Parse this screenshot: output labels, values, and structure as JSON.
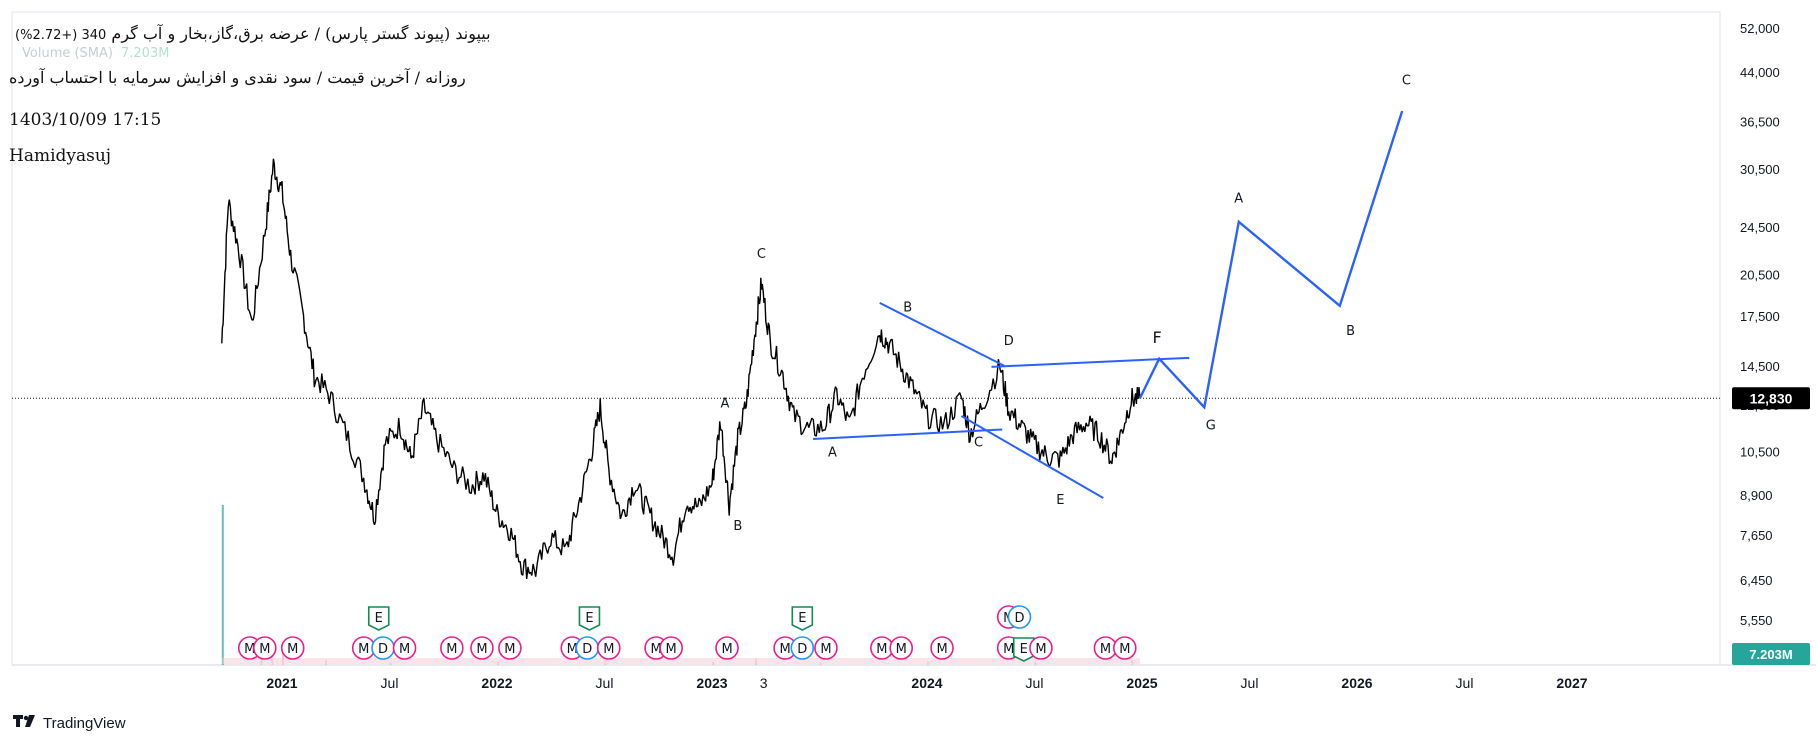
{
  "header": {
    "title_line": "بیپوند (پیوند گستر پارس) / عرضه برق،گاز،بخار و آب گرم",
    "change": "340 (+2.72%)",
    "volume_label": "Volume (SMA)",
    "volume_value": "7.203M",
    "subtitle": "روزانه / آخرین قیمت / سود نقدی و افزایش سرمایه با احتساب آورده",
    "datetime": "1403/10/09 17:15",
    "author": "Hamidyasuj"
  },
  "footer": {
    "brand": "TradingView"
  },
  "colors": {
    "candle": "#000000",
    "projection": "#2962ff",
    "price_tag_bg": "#000000",
    "volume_tag_bg": "#26a69a",
    "event_M": "#e91e8c",
    "event_E": "#138a55",
    "event_D": "#2196f3"
  },
  "chart_data": {
    "type": "line",
    "scale": "log",
    "x_axis_labels": [
      {
        "label": "2021",
        "t": 2021.0
      },
      {
        "label": "Jul",
        "t": 2021.5
      },
      {
        "label": "2022",
        "t": 2022.0
      },
      {
        "label": "Jul",
        "t": 2022.5
      },
      {
        "label": "2023",
        "t": 2023.0
      },
      {
        "label": "3",
        "t": 2023.24
      },
      {
        "label": "2024",
        "t": 2024.0
      },
      {
        "label": "Jul",
        "t": 2024.5
      },
      {
        "label": "2025",
        "t": 2025.0
      },
      {
        "label": "Jul",
        "t": 2025.5
      },
      {
        "label": "2026",
        "t": 2026.0
      },
      {
        "label": "Jul",
        "t": 2026.5
      },
      {
        "label": "2027",
        "t": 2027.0
      }
    ],
    "y_axis_labels": [
      52000,
      44000,
      36500,
      30500,
      24500,
      20500,
      17500,
      14500,
      12500,
      10500,
      8900,
      7650,
      6450,
      5550
    ],
    "y_axis_label_text": [
      "52,000",
      "44,000",
      "36,500",
      "30,500",
      "24,500",
      "20,500",
      "17,500",
      "14,500",
      "12,500",
      "10,500",
      "8,900",
      "7,650",
      "6,450",
      "5,550"
    ],
    "last_price": 12830,
    "last_price_label": "12,830",
    "volume_tag": "7.203M",
    "price_series_approx": [
      [
        2020.72,
        15800
      ],
      [
        2020.75,
        27000
      ],
      [
        2020.8,
        22500
      ],
      [
        2020.86,
        17000
      ],
      [
        2020.92,
        24000
      ],
      [
        2020.96,
        31000
      ],
      [
        2021.0,
        28000
      ],
      [
        2021.04,
        22000
      ],
      [
        2021.1,
        17500
      ],
      [
        2021.15,
        14000
      ],
      [
        2021.22,
        13000
      ],
      [
        2021.3,
        11200
      ],
      [
        2021.38,
        9500
      ],
      [
        2021.43,
        8200
      ],
      [
        2021.48,
        10800
      ],
      [
        2021.55,
        11600
      ],
      [
        2021.6,
        10200
      ],
      [
        2021.66,
        12400
      ],
      [
        2021.72,
        11000
      ],
      [
        2021.8,
        9800
      ],
      [
        2021.88,
        9200
      ],
      [
        2021.94,
        9600
      ],
      [
        2022.0,
        8300
      ],
      [
        2022.06,
        7800
      ],
      [
        2022.12,
        6800
      ],
      [
        2022.18,
        6700
      ],
      [
        2022.25,
        7600
      ],
      [
        2022.32,
        7200
      ],
      [
        2022.38,
        8600
      ],
      [
        2022.44,
        10500
      ],
      [
        2022.48,
        12400
      ],
      [
        2022.52,
        9800
      ],
      [
        2022.58,
        8200
      ],
      [
        2022.64,
        9300
      ],
      [
        2022.7,
        8400
      ],
      [
        2022.76,
        7700
      ],
      [
        2022.82,
        7100
      ],
      [
        2022.88,
        8700
      ],
      [
        2022.94,
        8500
      ],
      [
        2023.0,
        9300
      ],
      [
        2023.04,
        11800
      ],
      [
        2023.08,
        8600
      ],
      [
        2023.12,
        11000
      ],
      [
        2023.16,
        12600
      ],
      [
        2023.2,
        16500
      ],
      [
        2023.23,
        19800
      ],
      [
        2023.27,
        16000
      ],
      [
        2023.33,
        14000
      ],
      [
        2023.38,
        12000
      ],
      [
        2023.45,
        11400
      ],
      [
        2023.52,
        11500
      ],
      [
        2023.58,
        13000
      ],
      [
        2023.64,
        11600
      ],
      [
        2023.7,
        14000
      ],
      [
        2023.78,
        16500
      ],
      [
        2023.82,
        15800
      ],
      [
        2023.88,
        14500
      ],
      [
        2023.94,
        13200
      ],
      [
        2024.0,
        12000
      ],
      [
        2024.08,
        11600
      ],
      [
        2024.16,
        12900
      ],
      [
        2024.2,
        11200
      ],
      [
        2024.26,
        12600
      ],
      [
        2024.34,
        14500
      ],
      [
        2024.38,
        12300
      ],
      [
        2024.44,
        11500
      ],
      [
        2024.5,
        10800
      ],
      [
        2024.56,
        10300
      ],
      [
        2024.62,
        10200
      ],
      [
        2024.68,
        11200
      ],
      [
        2024.74,
        11700
      ],
      [
        2024.8,
        11200
      ],
      [
        2024.86,
        10200
      ],
      [
        2024.9,
        11200
      ],
      [
        2024.95,
        12800
      ],
      [
        2024.99,
        12830
      ]
    ],
    "projection_path": [
      {
        "label": "",
        "t": 2024.99,
        "v": 12830
      },
      {
        "label": "F",
        "t": 2025.08,
        "v": 14900
      },
      {
        "label": "G",
        "t": 2025.29,
        "v": 12400
      },
      {
        "label": "A",
        "t": 2025.45,
        "v": 25000
      },
      {
        "label": "B",
        "t": 2025.92,
        "v": 18200
      },
      {
        "label": "C",
        "t": 2026.21,
        "v": 38000
      }
    ],
    "trendlines": [
      {
        "from": {
          "t": 2023.78,
          "v": 18400
        },
        "to": {
          "t": 2024.36,
          "v": 14500
        }
      },
      {
        "from": {
          "t": 2024.16,
          "v": 12000
        },
        "to": {
          "t": 2024.82,
          "v": 8800
        }
      },
      {
        "from": {
          "t": 2023.47,
          "v": 11000
        },
        "to": {
          "t": 2024.35,
          "v": 11400
        }
      },
      {
        "from": {
          "t": 2024.3,
          "v": 14450
        },
        "to": {
          "t": 2025.22,
          "v": 14950
        }
      }
    ],
    "wave_labels": [
      {
        "text": "C",
        "t": 2023.23,
        "v": 21800,
        "pos": "above"
      },
      {
        "text": "A",
        "t": 2023.06,
        "v": 12400,
        "pos": "above"
      },
      {
        "text": "B",
        "t": 2023.12,
        "v": 7800,
        "pos": "below"
      },
      {
        "text": "B",
        "t": 2023.91,
        "v": 17800,
        "pos": "above"
      },
      {
        "text": "A",
        "t": 2023.56,
        "v": 10300,
        "pos": "below"
      },
      {
        "text": "D",
        "t": 2024.38,
        "v": 15700,
        "pos": "above"
      },
      {
        "text": "C",
        "t": 2024.24,
        "v": 10700,
        "pos": "below"
      },
      {
        "text": "E",
        "t": 2024.62,
        "v": 8600,
        "pos": "below"
      },
      {
        "text": "F",
        "t": 2025.07,
        "v": 15800,
        "pos": "above"
      },
      {
        "text": "G",
        "t": 2025.32,
        "v": 11400,
        "pos": "below"
      },
      {
        "text": "A",
        "t": 2025.45,
        "v": 26900,
        "pos": "above"
      },
      {
        "text": "B",
        "t": 2025.97,
        "v": 16300,
        "pos": "below"
      },
      {
        "text": "C",
        "t": 2026.23,
        "v": 42000,
        "pos": "above"
      }
    ],
    "events": [
      {
        "type": "E",
        "t": 2021.45,
        "row": 1
      },
      {
        "type": "E",
        "t": 2022.43,
        "row": 1
      },
      {
        "type": "E",
        "t": 2023.42,
        "row": 1
      },
      {
        "type": "M",
        "t": 2024.38,
        "row": 1
      },
      {
        "type": "D",
        "t": 2024.43,
        "row": 1
      },
      {
        "type": "M",
        "t": 2020.85,
        "row": 0
      },
      {
        "type": "M",
        "t": 2020.92,
        "row": 0
      },
      {
        "type": "M",
        "t": 2021.05,
        "row": 0
      },
      {
        "type": "M",
        "t": 2021.38,
        "row": 0
      },
      {
        "type": "D",
        "t": 2021.47,
        "row": 0
      },
      {
        "type": "M",
        "t": 2021.57,
        "row": 0
      },
      {
        "type": "M",
        "t": 2021.79,
        "row": 0
      },
      {
        "type": "M",
        "t": 2021.93,
        "row": 0
      },
      {
        "type": "M",
        "t": 2022.06,
        "row": 0
      },
      {
        "type": "M",
        "t": 2022.35,
        "row": 0
      },
      {
        "type": "D",
        "t": 2022.42,
        "row": 0
      },
      {
        "type": "M",
        "t": 2022.52,
        "row": 0
      },
      {
        "type": "M",
        "t": 2022.74,
        "row": 0
      },
      {
        "type": "M",
        "t": 2022.81,
        "row": 0
      },
      {
        "type": "M",
        "t": 2023.07,
        "row": 0
      },
      {
        "type": "M",
        "t": 2023.34,
        "row": 0
      },
      {
        "type": "D",
        "t": 2023.42,
        "row": 0
      },
      {
        "type": "M",
        "t": 2023.53,
        "row": 0
      },
      {
        "type": "M",
        "t": 2023.79,
        "row": 0
      },
      {
        "type": "M",
        "t": 2023.88,
        "row": 0
      },
      {
        "type": "M",
        "t": 2024.07,
        "row": 0
      },
      {
        "type": "M",
        "t": 2024.38,
        "row": 0
      },
      {
        "type": "E",
        "t": 2024.45,
        "row": 0
      },
      {
        "type": "M",
        "t": 2024.53,
        "row": 0
      },
      {
        "type": "M",
        "t": 2024.83,
        "row": 0
      },
      {
        "type": "M",
        "t": 2024.92,
        "row": 0
      }
    ],
    "volume": [
      {
        "t": 2020.72,
        "v": 1.0
      },
      {
        "t": 2020.9,
        "v": 0.07
      },
      {
        "t": 2020.95,
        "v": 0.1
      },
      {
        "t": 2021.0,
        "v": 0.09
      },
      {
        "t": 2021.2,
        "v": 0.03
      },
      {
        "t": 2021.5,
        "v": 0.02
      },
      {
        "t": 2022.0,
        "v": 0.02
      },
      {
        "t": 2022.5,
        "v": 0.03
      },
      {
        "t": 2023.0,
        "v": 0.02
      },
      {
        "t": 2023.2,
        "v": 0.04
      },
      {
        "t": 2023.5,
        "v": 0.02
      },
      {
        "t": 2024.0,
        "v": 0.02
      },
      {
        "t": 2024.5,
        "v": 0.02
      },
      {
        "t": 2024.95,
        "v": 0.03
      }
    ]
  }
}
